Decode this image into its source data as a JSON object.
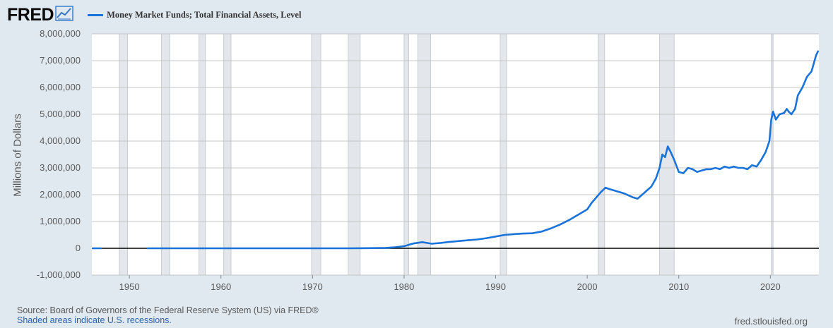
{
  "brand": {
    "logo_text": "FRED",
    "logo_icon": "trend-line-icon"
  },
  "legend": {
    "label": "Money Market Funds; Total Financial Assets, Level",
    "color": "#1a73d9"
  },
  "footer": {
    "source": "Source: Board of Governors of the Federal Reserve System (US) via FRED®",
    "note": "Shaded areas indicate U.S. recessions.",
    "site": "fred.stlouisfed.org"
  },
  "chart_data": {
    "type": "line",
    "ylabel": "Millions of Dollars",
    "xlim": [
      1945.9,
      2025.3
    ],
    "ylim": [
      -1000000,
      8000000
    ],
    "x_ticks": [
      1950,
      1960,
      1970,
      1980,
      1990,
      2000,
      2010,
      2020
    ],
    "x_tick_labels": [
      "1950",
      "1960",
      "1970",
      "1980",
      "1990",
      "2000",
      "2010",
      "2020"
    ],
    "y_ticks": [
      -1000000,
      0,
      1000000,
      2000000,
      3000000,
      4000000,
      5000000,
      6000000,
      7000000,
      8000000
    ],
    "y_tick_labels": [
      "-1,000,000",
      "0",
      "1,000,000",
      "2,000,000",
      "3,000,000",
      "4,000,000",
      "5,000,000",
      "6,000,000",
      "7,000,000",
      "8,000,000"
    ],
    "grid": true,
    "zero_line": true,
    "recessions": [
      [
        1948.9,
        1949.8
      ],
      [
        1953.5,
        1954.4
      ],
      [
        1957.6,
        1958.3
      ],
      [
        1960.3,
        1961.1
      ],
      [
        1969.9,
        1970.9
      ],
      [
        1973.9,
        1975.2
      ],
      [
        1980.0,
        1980.5
      ],
      [
        1981.5,
        1982.9
      ],
      [
        1990.5,
        1991.2
      ],
      [
        2001.2,
        2001.9
      ],
      [
        2007.9,
        2009.5
      ],
      [
        2020.1,
        2020.3
      ]
    ],
    "series": [
      {
        "color": "#1a73d9",
        "segments": [
          {
            "x": [
              1946.0,
              1946.9
            ],
            "y": [
              0,
              0
            ]
          },
          {
            "x": [
              1952.0,
              1960,
              1970,
              1974.0,
              1976,
              1978,
              1979,
              1980,
              1981,
              1982,
              1982.5,
              1983,
              1984,
              1985,
              1986,
              1987,
              1988,
              1989,
              1990,
              1991,
              1992,
              1993,
              1994,
              1995,
              1996,
              1997,
              1998,
              1999,
              2000,
              2000.5,
              2001,
              2001.5,
              2002,
              2002.5,
              2003,
              2004,
              2005,
              2005.5,
              2006,
              2007,
              2007.5,
              2007.9,
              2008.2,
              2008.5,
              2008.8,
              2009.1,
              2009.5,
              2010,
              2010.5,
              2011,
              2011.5,
              2012,
              2012.5,
              2013,
              2013.5,
              2014,
              2014.5,
              2015,
              2015.5,
              2016,
              2016.5,
              2017,
              2017.5,
              2018,
              2018.5,
              2019,
              2019.5,
              2019.9,
              2020.1,
              2020.3,
              2020.6,
              2021,
              2021.5,
              2021.8,
              2022,
              2022.3,
              2022.7,
              2023,
              2023.5,
              2024,
              2024.5,
              2025.0,
              2025.2
            ],
            "y": [
              0,
              0,
              0,
              0,
              5000,
              15000,
              40000,
              80000,
              180000,
              230000,
              200000,
              170000,
              200000,
              240000,
              270000,
              300000,
              330000,
              380000,
              440000,
              500000,
              530000,
              550000,
              560000,
              620000,
              740000,
              880000,
              1050000,
              1250000,
              1450000,
              1700000,
              1900000,
              2100000,
              2260000,
              2200000,
              2150000,
              2050000,
              1900000,
              1850000,
              2000000,
              2300000,
              2600000,
              3000000,
              3500000,
              3400000,
              3800000,
              3600000,
              3300000,
              2850000,
              2800000,
              3000000,
              2950000,
              2850000,
              2900000,
              2950000,
              2950000,
              3000000,
              2950000,
              3050000,
              3000000,
              3050000,
              3000000,
              3000000,
              2950000,
              3100000,
              3050000,
              3300000,
              3600000,
              4000000,
              4800000,
              5100000,
              4800000,
              5000000,
              5050000,
              5200000,
              5100000,
              5000000,
              5200000,
              5700000,
              6000000,
              6400000,
              6600000,
              7200000,
              7350000
            ]
          }
        ]
      }
    ]
  }
}
